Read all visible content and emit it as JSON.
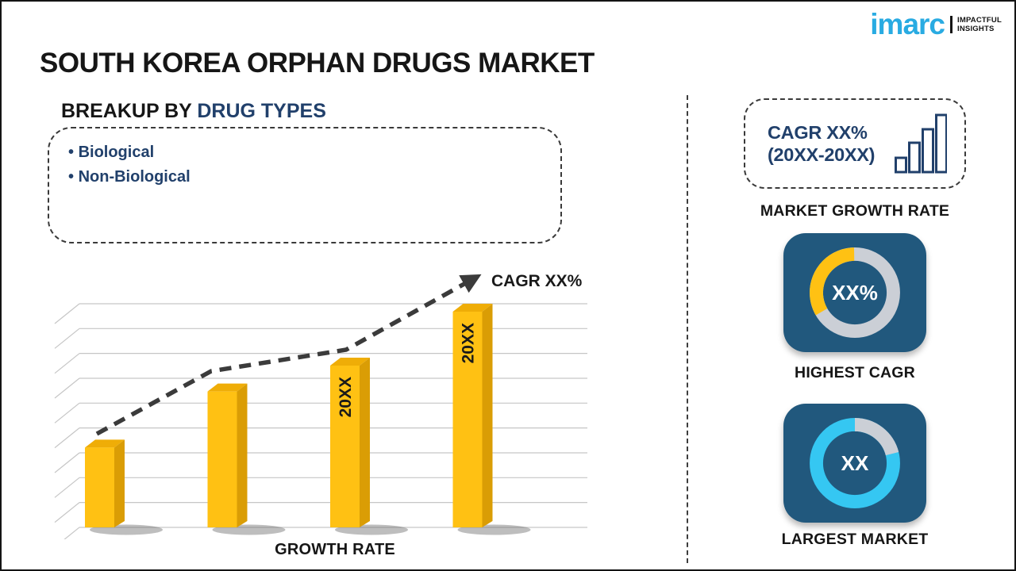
{
  "brand": {
    "logo_text": "imarc",
    "tagline_line1": "IMPACTFUL",
    "tagline_line2": "INSIGHTS",
    "logo_color": "#29ABE2"
  },
  "title": "SOUTH KOREA ORPHAN DRUGS MARKET",
  "breakup": {
    "heading_prefix": "BREAKUP BY ",
    "heading_highlight": "DRUG TYPES",
    "items": [
      "Biological",
      "Non-Biological"
    ]
  },
  "chart_data": {
    "type": "bar",
    "title": "",
    "categories": [
      "",
      "",
      "",
      ""
    ],
    "values": [
      37,
      63,
      75,
      100
    ],
    "value_scale": "relative-height-percent (no numeric axis shown)",
    "bar_labels": [
      "",
      "",
      "20XX",
      "20XX"
    ],
    "xlabel": "GROWTH RATE",
    "ylabel": "",
    "annotation": "CAGR XX%",
    "grid": true,
    "legend": false,
    "style": "3d-gold-columns-with-dashed-trend-arrow",
    "trend_points": [
      [
        62,
        212
      ],
      [
        206,
        133
      ],
      [
        376,
        106
      ],
      [
        541,
        14
      ]
    ],
    "colors": {
      "front": "#FFC113",
      "top": "#EFAD07",
      "side": "#DA9D05",
      "grid": "#C6C6C6",
      "trend": "#3B3B3B",
      "label": "#1A1A1A",
      "shadow": "#6E6E6E"
    }
  },
  "sidebar": {
    "cagr_box": {
      "line1": "CAGR XX%",
      "line2": "(20XX-20XX)"
    },
    "market_growth_label": "MARKET GROWTH RATE",
    "card_bg": "#21587D",
    "highest_cagr": {
      "value": "XX%",
      "label": "HIGHEST CAGR",
      "base_color": "#CBCFD6",
      "segment_color": "#FFC113",
      "segment_percent": 33,
      "segment_start_deg": 240
    },
    "largest_market": {
      "value": "XX",
      "label": "LARGEST MARKET",
      "base_color": "#35C7F2",
      "segment_color": "#CBCFD6",
      "segment_percent": 21,
      "segment_start_deg": 0
    }
  }
}
